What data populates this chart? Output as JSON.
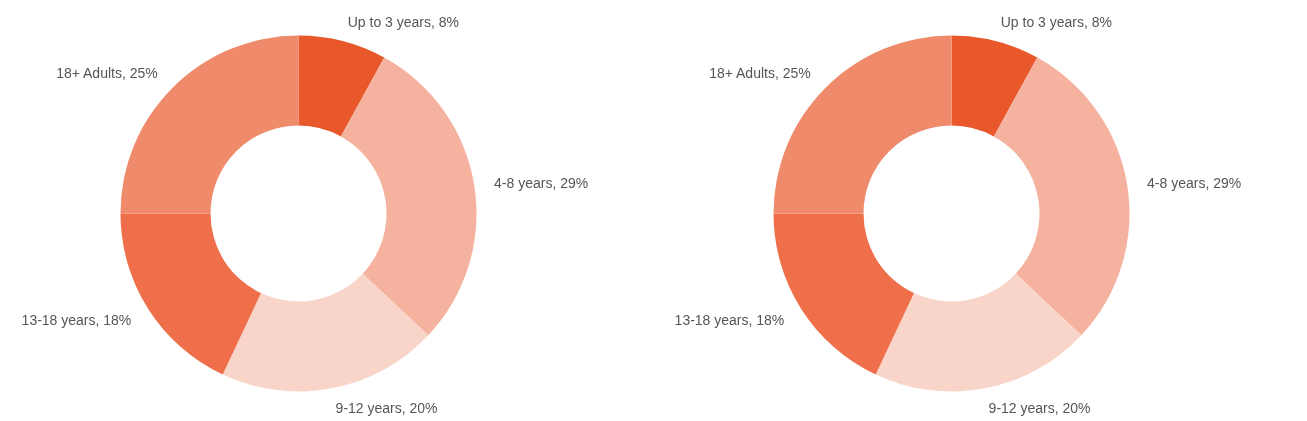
{
  "chart_data": [
    {
      "type": "donut",
      "categories": [
        "Up to 3 years",
        "4-8 years",
        "9-12 years",
        "13-18 years",
        "18+ Adults"
      ],
      "values": [
        8,
        29,
        20,
        18,
        25
      ],
      "colors": [
        "#e8582b",
        "#f5b29f",
        "#f9d5c9",
        "#ee6f4a",
        "#ef8a6b"
      ],
      "value_labels": [
        "8%",
        "29%",
        "20%",
        "18%",
        "25%"
      ]
    },
    {
      "type": "donut",
      "categories": [
        "Up to 3 years",
        "4-8 years",
        "9-12 years",
        "13-18 years",
        "18+ Adults"
      ],
      "values": [
        8,
        29,
        20,
        18,
        25
      ],
      "colors": [
        "#e8582b",
        "#f5b29f",
        "#f9d5c9",
        "#ee6f4a",
        "#ef8a6b"
      ],
      "value_labels": [
        "8%",
        "29%",
        "20%",
        "18%",
        "25%"
      ]
    }
  ]
}
